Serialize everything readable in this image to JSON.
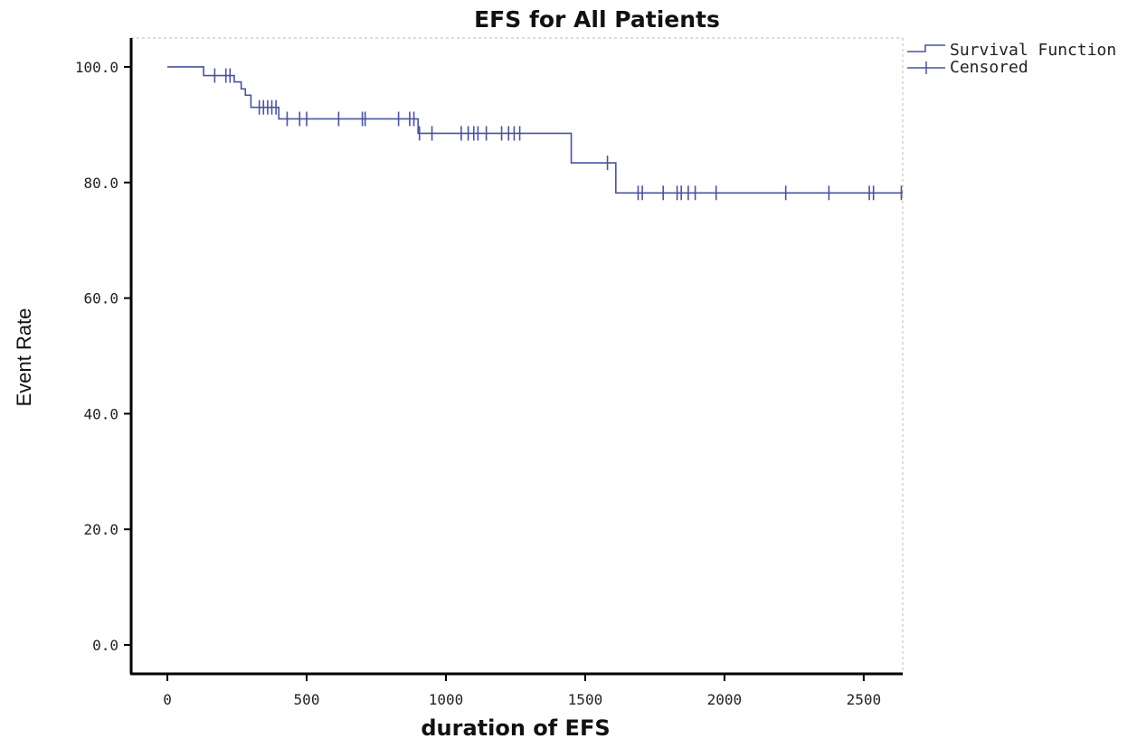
{
  "chart_data": {
    "type": "line",
    "title": "EFS for All Patients",
    "xlabel": "duration of EFS",
    "ylabel": "Event Rate",
    "xlim": [
      -130,
      2640
    ],
    "ylim": [
      -5,
      105
    ],
    "xticks": [
      0,
      500,
      1000,
      1500,
      2000,
      2500
    ],
    "yticks": [
      0,
      20,
      40,
      60,
      80,
      100
    ],
    "xtick_labels": [
      "0",
      "500",
      "1000",
      "1500",
      "2000",
      "2500"
    ],
    "ytick_labels": [
      "0.0",
      "20.0",
      "40.0",
      "60.0",
      "80.0",
      "100.0"
    ],
    "grid": false,
    "legend_position": "top-right",
    "colors": {
      "series": "#4a52a0",
      "axis": "#000000"
    },
    "series": [
      {
        "name": "Survival Function",
        "step": true,
        "x": [
          0,
          130,
          240,
          265,
          280,
          300,
          400,
          900,
          1450,
          1610,
          2640
        ],
        "y": [
          100,
          98.5,
          97.4,
          96.2,
          95.1,
          93.0,
          91.0,
          88.5,
          83.4,
          78.2,
          78.2
        ]
      },
      {
        "name": "Censored",
        "marker": "+",
        "x": [
          170,
          210,
          225,
          330,
          345,
          360,
          375,
          390,
          430,
          475,
          500,
          615,
          700,
          710,
          830,
          870,
          885,
          905,
          950,
          1055,
          1080,
          1100,
          1115,
          1145,
          1200,
          1225,
          1245,
          1265,
          1580,
          1690,
          1705,
          1780,
          1830,
          1845,
          1870,
          1895,
          1970,
          2220,
          2375,
          2520,
          2535,
          2635
        ],
        "y": [
          98.5,
          98.5,
          98.5,
          93.0,
          93.0,
          93.0,
          93.0,
          93.0,
          91.0,
          91.0,
          91.0,
          91.0,
          91.0,
          91.0,
          91.0,
          91.0,
          91.0,
          88.5,
          88.5,
          88.5,
          88.5,
          88.5,
          88.5,
          88.5,
          88.5,
          88.5,
          88.5,
          88.5,
          83.4,
          78.2,
          78.2,
          78.2,
          78.2,
          78.2,
          78.2,
          78.2,
          78.2,
          78.2,
          78.2,
          78.2,
          78.2,
          78.2
        ]
      }
    ]
  }
}
